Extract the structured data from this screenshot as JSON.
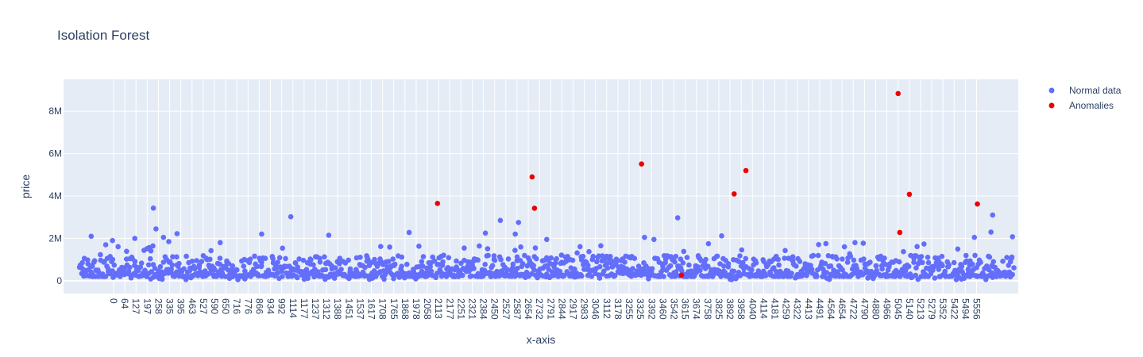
{
  "chart_data": {
    "type": "scatter",
    "title": "Isolation Forest",
    "xlabel": "x-axis",
    "ylabel": "price",
    "xlim": [
      -95,
      5665
    ],
    "ylim": [
      -600000,
      9500000
    ],
    "grid": true,
    "legend_position": "top-right",
    "y_ticks": [
      0,
      2000000,
      4000000,
      6000000,
      8000000
    ],
    "y_tick_labels": [
      "0",
      "2M",
      "4M",
      "6M",
      "8M"
    ],
    "x_tick_labels": [
      "0",
      "64",
      "127",
      "197",
      "258",
      "335",
      "395",
      "463",
      "527",
      "590",
      "650",
      "716",
      "776",
      "866",
      "934",
      "992",
      "1114",
      "1177",
      "1237",
      "1312",
      "1388",
      "1451",
      "1537",
      "1617",
      "1708",
      "1765",
      "1868",
      "1978",
      "2058",
      "2113",
      "2177",
      "2251",
      "2321",
      "2384",
      "2450",
      "2527",
      "2587",
      "2654",
      "2732",
      "2791",
      "2844",
      "2917",
      "2983",
      "3046",
      "3112",
      "3178",
      "3255",
      "3325",
      "3392",
      "3460",
      "3542",
      "3615",
      "3674",
      "3758",
      "3825",
      "3892",
      "3958",
      "4040",
      "4114",
      "4181",
      "4259",
      "4322",
      "4413",
      "4491",
      "4564",
      "4654",
      "4722",
      "4790",
      "4880",
      "4966",
      "5045",
      "5140",
      "5213",
      "5279",
      "5352",
      "5422",
      "5494",
      "5556"
    ],
    "series": [
      {
        "name": "Normal data",
        "color": "#636efa",
        "x_range": [
          0,
          5640
        ],
        "typical_y_range": [
          50000,
          1200000
        ],
        "points": [
          {
            "x": 72,
            "y": 2100000
          },
          {
            "x": 200,
            "y": 1900000
          },
          {
            "x": 335,
            "y": 2000000
          },
          {
            "x": 447,
            "y": 3430000
          },
          {
            "x": 463,
            "y": 2450000
          },
          {
            "x": 508,
            "y": 2050000
          },
          {
            "x": 540,
            "y": 1850000
          },
          {
            "x": 590,
            "y": 2220000
          },
          {
            "x": 850,
            "y": 1800000
          },
          {
            "x": 1100,
            "y": 2200000
          },
          {
            "x": 1276,
            "y": 3020000
          },
          {
            "x": 1505,
            "y": 2150000
          },
          {
            "x": 1990,
            "y": 2280000
          },
          {
            "x": 2450,
            "y": 2250000
          },
          {
            "x": 2540,
            "y": 2850000
          },
          {
            "x": 2630,
            "y": 2200000
          },
          {
            "x": 2650,
            "y": 2750000
          },
          {
            "x": 2820,
            "y": 1950000
          },
          {
            "x": 3410,
            "y": 2050000
          },
          {
            "x": 3467,
            "y": 1950000
          },
          {
            "x": 3610,
            "y": 2970000
          },
          {
            "x": 3875,
            "y": 2120000
          },
          {
            "x": 4680,
            "y": 1800000
          },
          {
            "x": 5300,
            "y": 1500000
          },
          {
            "x": 5400,
            "y": 2050000
          },
          {
            "x": 5500,
            "y": 2300000
          },
          {
            "x": 5510,
            "y": 3100000
          },
          {
            "x": 5630,
            "y": 2080000
          }
        ]
      },
      {
        "name": "Anomalies",
        "color": "#ef0000",
        "points": [
          {
            "x": 2161,
            "y": 3650000
          },
          {
            "x": 2732,
            "y": 4900000
          },
          {
            "x": 2746,
            "y": 3420000
          },
          {
            "x": 3392,
            "y": 5510000
          },
          {
            "x": 3633,
            "y": 270000
          },
          {
            "x": 3951,
            "y": 4100000
          },
          {
            "x": 4022,
            "y": 5200000
          },
          {
            "x": 4940,
            "y": 8830000
          },
          {
            "x": 4950,
            "y": 2280000
          },
          {
            "x": 5008,
            "y": 4080000
          },
          {
            "x": 5418,
            "y": 3620000
          }
        ]
      }
    ]
  }
}
